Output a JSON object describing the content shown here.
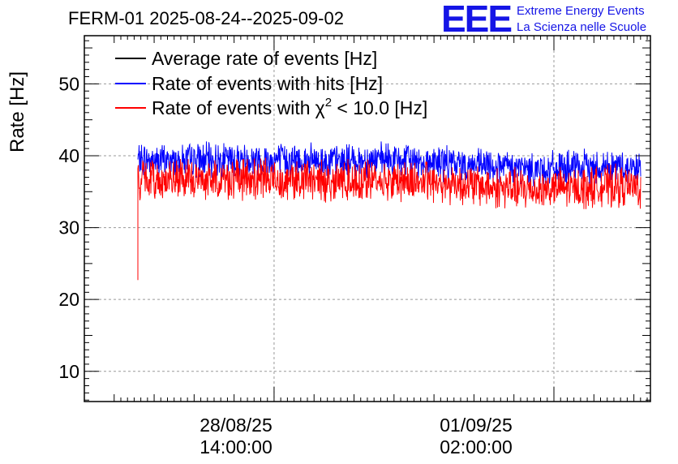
{
  "header": {
    "title": "FERM-01 2025-08-24--2025-09-02",
    "logo_text": "EEE",
    "org_line1": "Extreme Energy Events",
    "org_line2": "La Scienza nelle Scuole"
  },
  "colors": {
    "average": "#000000",
    "hits": "#0000ff",
    "chi2": "#ff0000",
    "logo": "#1515e6",
    "grid": "#999999"
  },
  "chart_data": {
    "type": "line",
    "title": "FERM-01 2025-08-24--2025-09-02",
    "ylabel": "Rate [Hz]",
    "xlabel": "",
    "x_unit": "days since 2025-08-24 00:00",
    "xlim": [
      2.21,
      9.29
    ],
    "ylim": [
      5.8,
      56.7
    ],
    "y_ticks": [
      10,
      20,
      30,
      40,
      50
    ],
    "x_ticks": [
      {
        "value": 4.583,
        "line1": "28/08/25",
        "line2": "14:00:00"
      },
      {
        "value": 8.083,
        "line1": "01/09/25",
        "line2": "02:00:00"
      }
    ],
    "grid": true,
    "legend_position": "top-left",
    "legend": [
      {
        "label_text": "Average rate of events [Hz]",
        "color": "#000000"
      },
      {
        "label_text": "Rate of events with hits [Hz]",
        "color": "#0000ff"
      },
      {
        "label_text": "Rate of events with",
        "label_tail": " < 10.0 [Hz]",
        "symbol": "χ",
        "exponent": "2",
        "color": "#ff0000"
      }
    ],
    "series": [
      {
        "name": "Rate of events with hits [Hz]",
        "color": "#0000ff",
        "noise_band": 3.0,
        "x": [
          2.88,
          3.3,
          3.8,
          4.3,
          4.8,
          5.3,
          5.8,
          6.3,
          6.8,
          7.3,
          7.8,
          8.3,
          8.8,
          9.17
        ],
        "values": [
          39.4,
          39.3,
          39.4,
          39.5,
          39.4,
          39.2,
          39.4,
          39.3,
          38.9,
          38.5,
          38.1,
          38.3,
          38.5,
          38.3
        ]
      },
      {
        "name": "Rate of events with chi2 < 10.0 [Hz]",
        "color": "#ff0000",
        "noise_band": 3.6,
        "start_value": 22.7,
        "x": [
          2.88,
          3.3,
          3.8,
          4.3,
          4.8,
          5.3,
          5.8,
          6.3,
          6.8,
          7.3,
          7.8,
          8.3,
          8.8,
          9.17
        ],
        "values": [
          36.7,
          36.6,
          36.7,
          36.8,
          36.7,
          36.5,
          36.6,
          36.5,
          36.2,
          35.6,
          35.3,
          35.5,
          35.8,
          35.5
        ]
      }
    ]
  }
}
